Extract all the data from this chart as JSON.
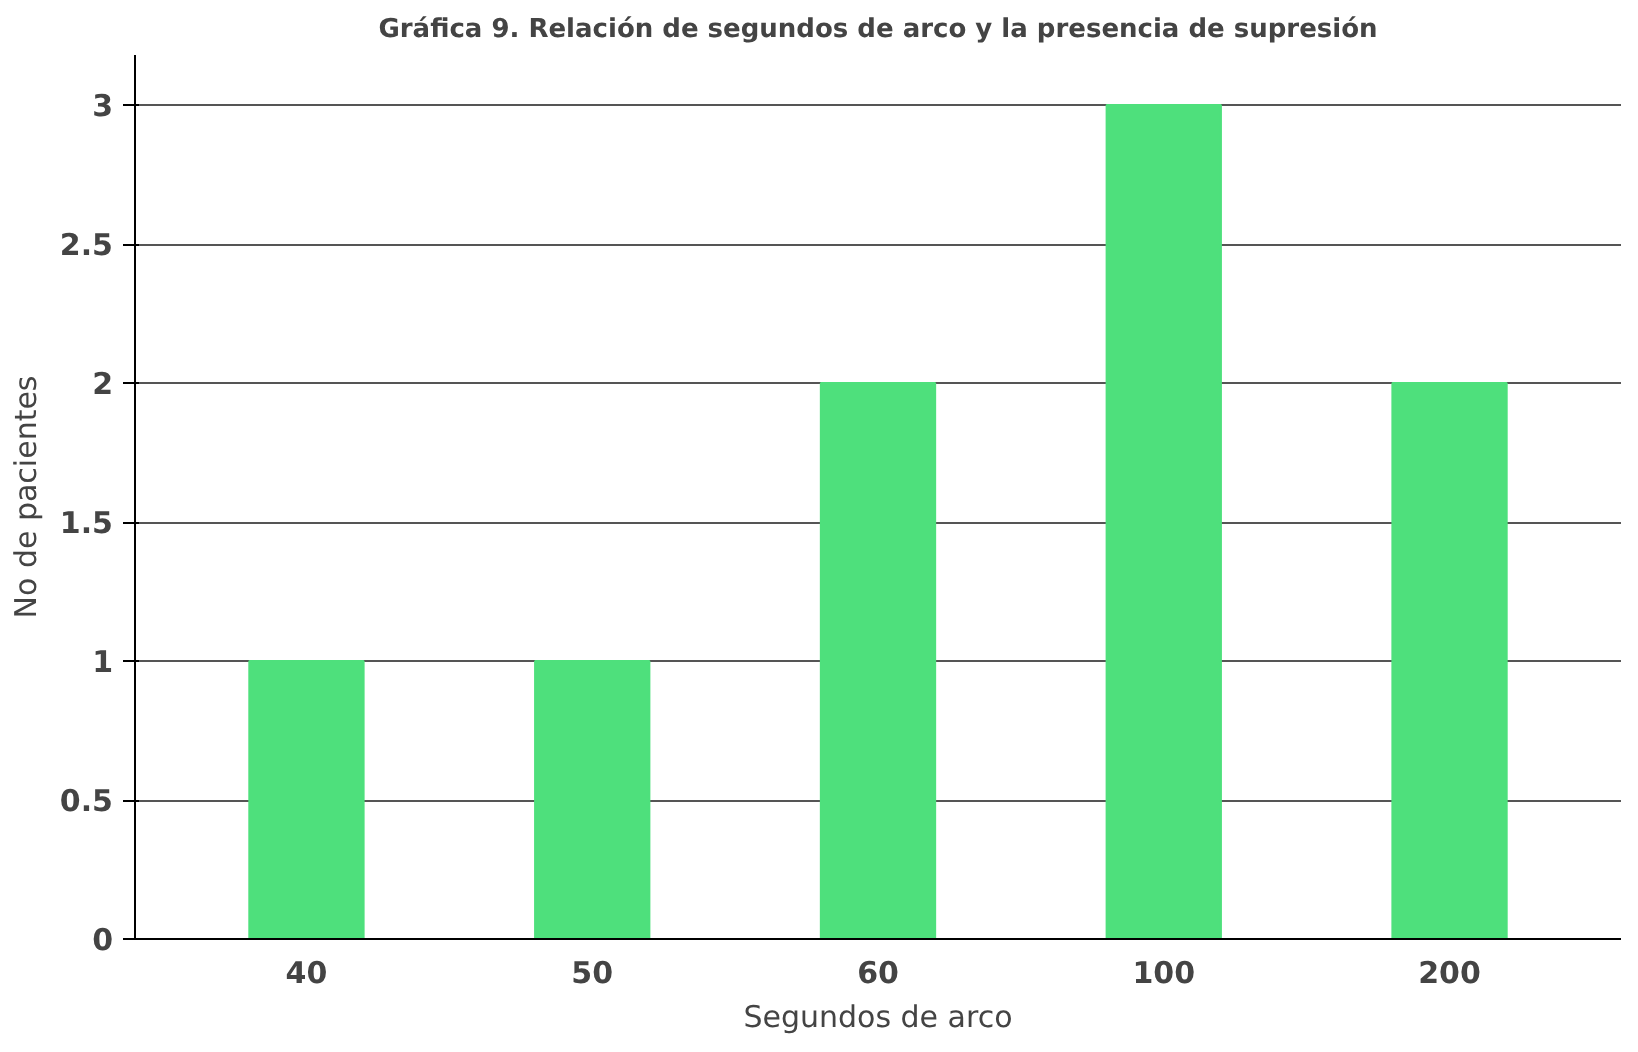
{
  "chart_data": {
    "type": "bar",
    "title": "Gráfica 9. Relación de segundos de arco y la presencia de supresión",
    "xlabel": "Segundos de arco",
    "ylabel": "No de pacientes",
    "categories": [
      "40",
      "50",
      "60",
      "100",
      "200"
    ],
    "values": [
      1,
      1,
      2,
      3,
      2
    ],
    "color": "#4ee07c",
    "ylim": [
      0,
      3
    ],
    "yticks": [
      0,
      0.5,
      1,
      1.5,
      2,
      2.5,
      3
    ],
    "grid": "y"
  }
}
